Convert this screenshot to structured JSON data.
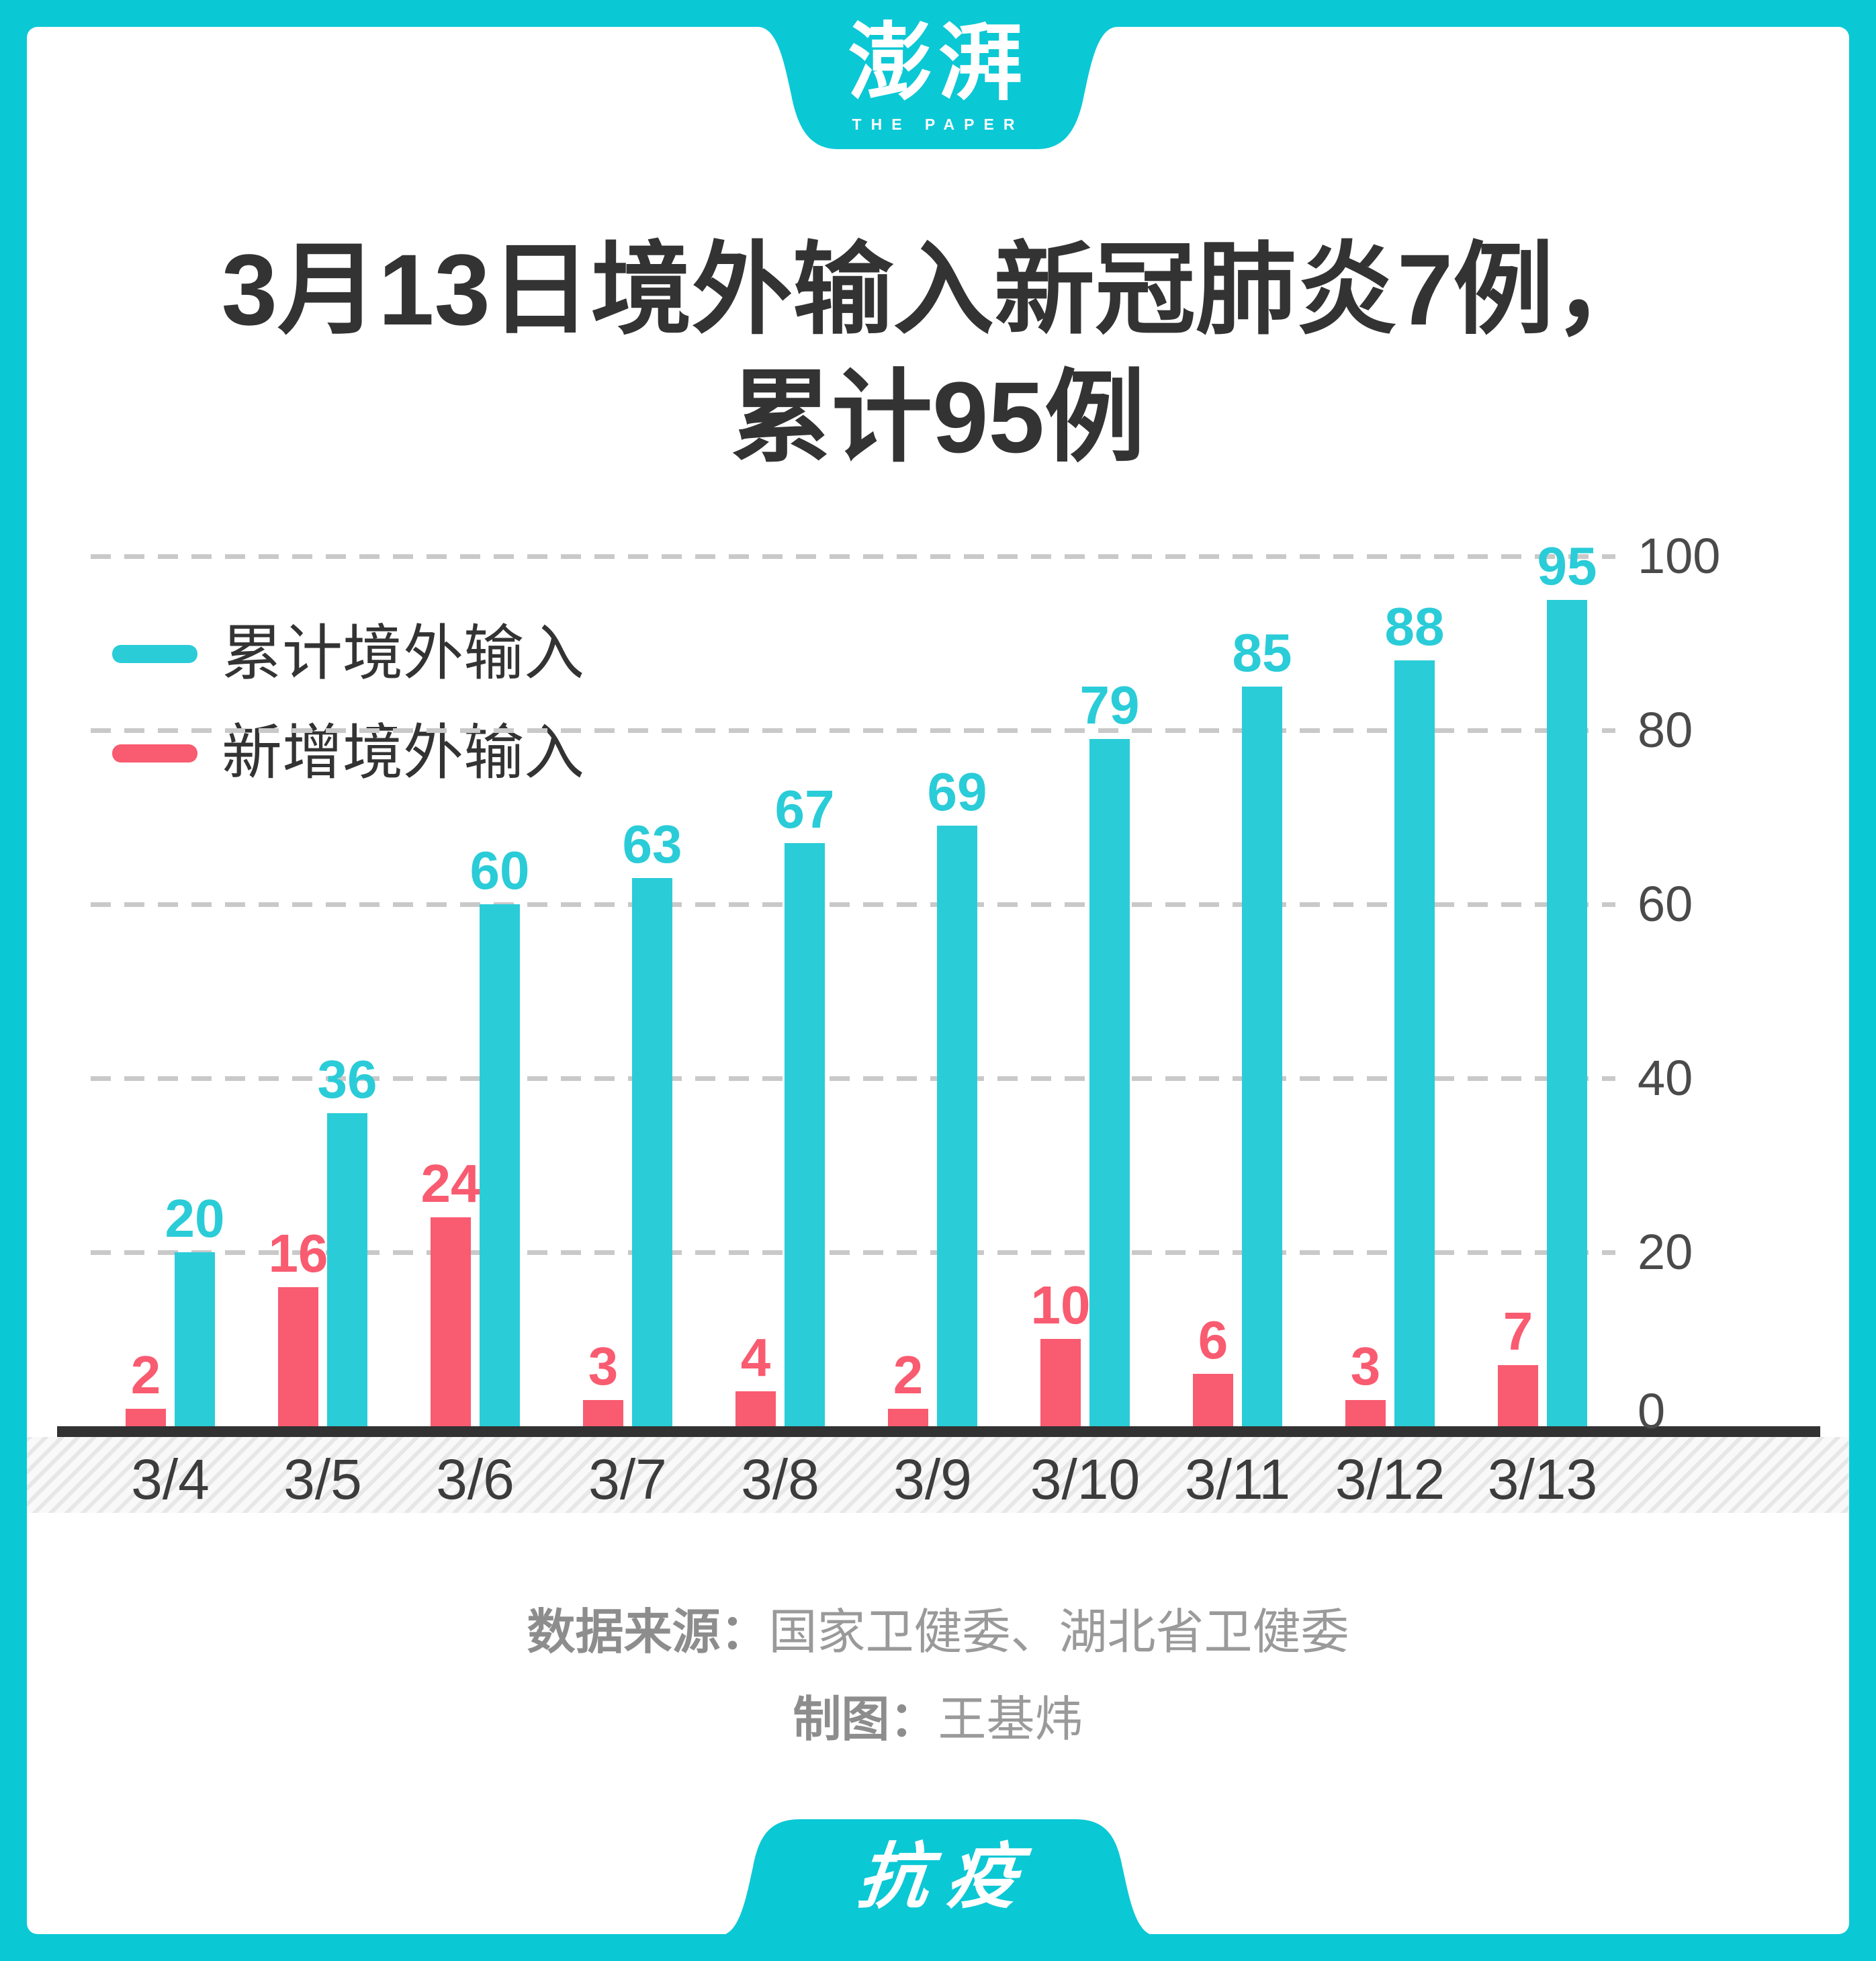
{
  "brand": {
    "logo_cn": "澎湃",
    "logo_en": "THE PAPER",
    "campaign_tag": "抗疫"
  },
  "title": {
    "line1": "3月13日境外输入新冠肺炎7例，",
    "line2": "累计95例"
  },
  "legend": [
    {
      "label": "累计境外输入",
      "color": "#2accd8"
    },
    {
      "label": "新增境外输入",
      "color": "#f95b70"
    }
  ],
  "chart_data": {
    "type": "bar",
    "title": "3月13日境外输入新冠肺炎7例，累计95例",
    "categories": [
      "3/4",
      "3/5",
      "3/6",
      "3/7",
      "3/8",
      "3/9",
      "3/10",
      "3/11",
      "3/12",
      "3/13"
    ],
    "series": [
      {
        "name": "新增境外输入",
        "color": "#f95b70",
        "values": [
          2,
          16,
          24,
          3,
          4,
          2,
          10,
          6,
          3,
          7
        ]
      },
      {
        "name": "累计境外输入",
        "color": "#2accd8",
        "values": [
          20,
          36,
          60,
          63,
          67,
          69,
          79,
          85,
          88,
          95
        ]
      }
    ],
    "xlabel": "",
    "ylabel": "",
    "ylim": [
      0,
      100
    ],
    "yticks": [
      0,
      20,
      40,
      60,
      80,
      100
    ],
    "y_axis_side": "right",
    "grid": "horizontal-dashed",
    "value_labels": true,
    "legend_position": "top-left-inside"
  },
  "source": {
    "label": "数据来源：",
    "value": "国家卫健委、湖北省卫健委",
    "credit_label": "制图：",
    "credit_value": "王基炜"
  },
  "colors": {
    "accent_teal": "#0bc8d5",
    "bar_teal": "#2accd8",
    "bar_pink": "#f95b70",
    "title_text": "#333333",
    "axis_text": "#4a4a4a",
    "source_text": "#9a9a9a"
  }
}
